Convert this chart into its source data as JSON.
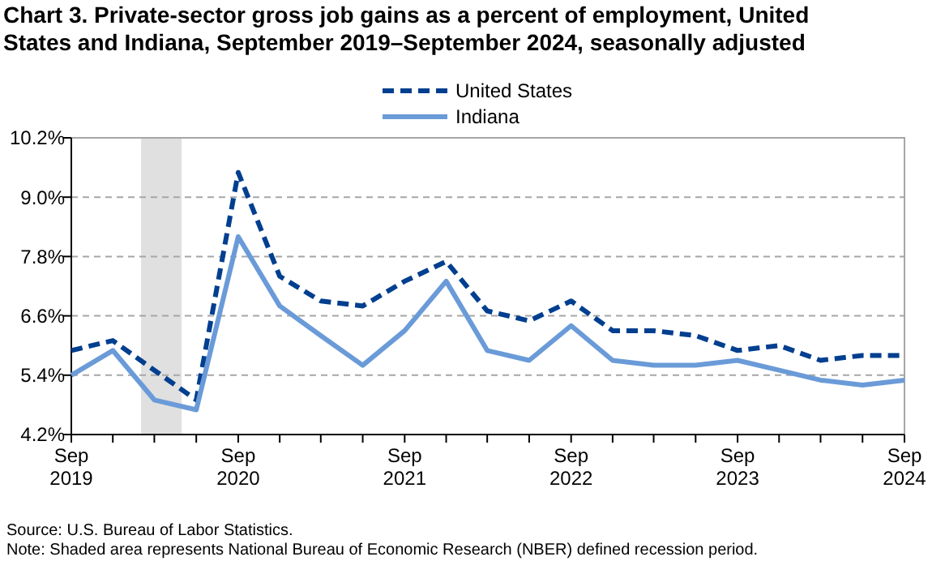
{
  "chart_data": {
    "type": "line",
    "title": "Chart 3. Private-sector gross job gains as a percent of employment, United States and Indiana,  September 2019–September 2024, seasonally adjusted",
    "x": [
      "2019-09",
      "2019-12",
      "2020-03",
      "2020-06",
      "2020-09",
      "2020-12",
      "2021-03",
      "2021-06",
      "2021-09",
      "2021-12",
      "2022-03",
      "2022-06",
      "2022-09",
      "2022-12",
      "2023-03",
      "2023-06",
      "2023-09",
      "2023-12",
      "2024-03",
      "2024-06",
      "2024-09"
    ],
    "series": [
      {
        "name": "United States",
        "color": "#003f8f",
        "line_style": "dashed",
        "values": [
          5.9,
          6.1,
          5.5,
          4.9,
          9.5,
          7.4,
          6.9,
          6.8,
          7.3,
          7.7,
          6.7,
          6.5,
          6.9,
          6.3,
          6.3,
          6.2,
          5.9,
          6.0,
          5.7,
          5.8,
          5.8
        ]
      },
      {
        "name": "Indiana",
        "color": "#6a9bd8",
        "line_style": "solid",
        "values": [
          5.4,
          5.9,
          4.9,
          4.7,
          8.2,
          6.8,
          6.2,
          5.6,
          6.3,
          7.3,
          5.9,
          5.7,
          6.4,
          5.7,
          5.6,
          5.6,
          5.7,
          5.5,
          5.3,
          5.2,
          5.3
        ]
      }
    ],
    "xlim": [
      "2019-09",
      "2024-09"
    ],
    "xticks": [
      {
        "value": "2019-09",
        "label": "Sep 2019"
      },
      {
        "value": "2019-12",
        "label": null
      },
      {
        "value": "2020-03",
        "label": null
      },
      {
        "value": "2020-06",
        "label": null
      },
      {
        "value": "2020-09",
        "label": "Sep 2020"
      },
      {
        "value": "2020-12",
        "label": null
      },
      {
        "value": "2021-03",
        "label": null
      },
      {
        "value": "2021-06",
        "label": null
      },
      {
        "value": "2021-09",
        "label": "Sep 2021"
      },
      {
        "value": "2021-12",
        "label": null
      },
      {
        "value": "2022-03",
        "label": null
      },
      {
        "value": "2022-06",
        "label": null
      },
      {
        "value": "2022-09",
        "label": "Sep 2022"
      },
      {
        "value": "2022-12",
        "label": null
      },
      {
        "value": "2023-03",
        "label": null
      },
      {
        "value": "2023-06",
        "label": null
      },
      {
        "value": "2023-09",
        "label": "Sep 2023"
      },
      {
        "value": "2023-12",
        "label": null
      },
      {
        "value": "2024-03",
        "label": null
      },
      {
        "value": "2024-06",
        "label": null
      },
      {
        "value": "2024-09",
        "label": "Sep 2024"
      }
    ],
    "ylim": [
      4.2,
      10.2
    ],
    "yticks": [
      {
        "value": 4.2,
        "label": "4.2%"
      },
      {
        "value": 5.4,
        "label": "5.4%"
      },
      {
        "value": 6.6,
        "label": "6.6%"
      },
      {
        "value": 7.8,
        "label": "7.8%"
      },
      {
        "value": 9.0,
        "label": "9.0%"
      },
      {
        "value": 10.2,
        "label": "10.2%"
      }
    ],
    "grid": "y",
    "legend": "top",
    "bands": [
      {
        "axis": "x",
        "from": "2020-02-01",
        "to": "2020-04-30",
        "color": "#e0e0e0"
      }
    ],
    "annotations": [
      "Source: U.S. Bureau of Labor Statistics.",
      "Note: Shaded area represents National Bureau of Economic Research (NBER) defined recession period."
    ]
  }
}
